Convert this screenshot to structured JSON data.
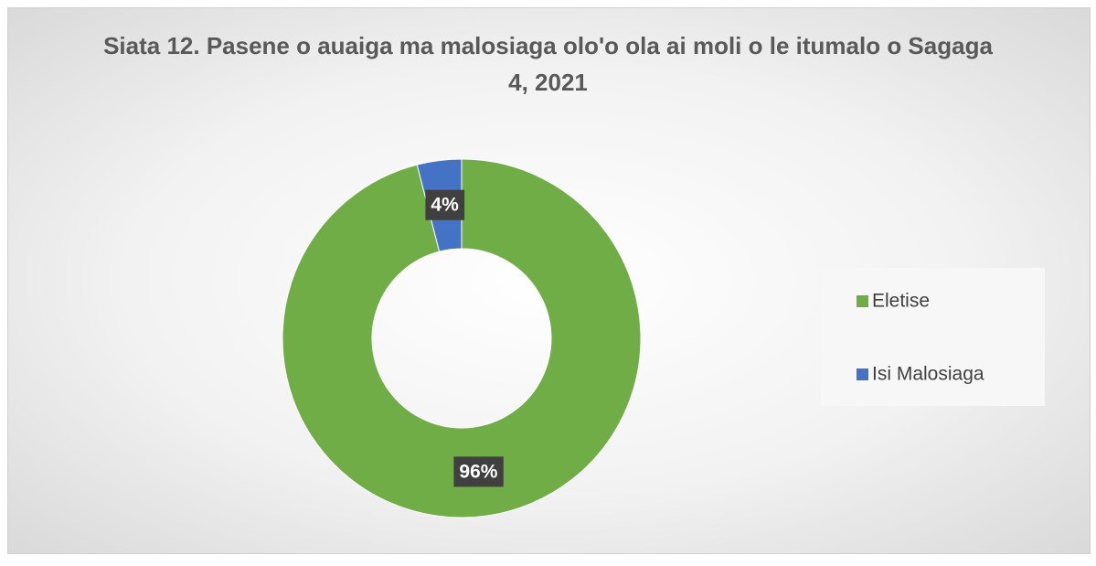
{
  "chart_data": {
    "type": "donut",
    "title": "Siata 12. Pasene o auaiga ma malosiaga olo'o ola ai moli o le itumalo o Sagaga 4, 2021",
    "categories": [
      "Eletise",
      "Isi Malosiaga"
    ],
    "values": [
      96,
      4
    ],
    "value_labels": [
      "96%",
      "4%"
    ],
    "colors": [
      "#70ad47",
      "#4472c4"
    ],
    "legend": "right"
  }
}
